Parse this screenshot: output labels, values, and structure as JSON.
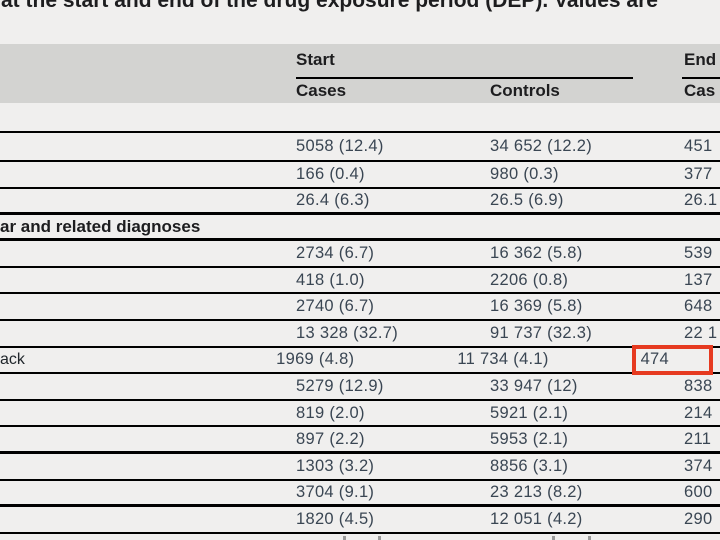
{
  "page": {
    "title_fragment": "at the start and end of the drug exposure period (DEP). Values are"
  },
  "table": {
    "column_groups": {
      "start": {
        "label": "Start",
        "col1": "Cases",
        "col2": "Controls"
      },
      "end": {
        "label": "End",
        "col1": "Cas"
      }
    },
    "rows": [
      {
        "type": "data",
        "label": "",
        "cases": "5058 (12.4)",
        "controls": "34 652 (12.2)",
        "end_cases": "451",
        "first": true
      },
      {
        "type": "data",
        "label": "",
        "cases": "166 (0.4)",
        "controls": "980 (0.3)",
        "end_cases": "377"
      },
      {
        "type": "data",
        "label": "",
        "cases": "26.4 (6.3)",
        "controls": "26.5 (6.9)",
        "end_cases": "26.1",
        "thick": true
      },
      {
        "type": "section",
        "label": "ar and related diagnoses",
        "thick": true
      },
      {
        "type": "data",
        "label": "",
        "cases": "2734 (6.7)",
        "controls": "16 362 (5.8)",
        "end_cases": "539"
      },
      {
        "type": "data",
        "label": "",
        "cases": "418 (1.0)",
        "controls": "2206 (0.8)",
        "end_cases": "137"
      },
      {
        "type": "data",
        "label": "",
        "cases": "2740 (6.7)",
        "controls": "16 369 (5.8)",
        "end_cases": "648"
      },
      {
        "type": "data",
        "label": "",
        "cases": "13 328 (32.7)",
        "controls": "91 737 (32.3)",
        "end_cases": "22 1"
      },
      {
        "type": "data",
        "label": "ack",
        "cases": "1969 (4.8)",
        "controls": "11 734 (4.1)",
        "end_cases": "474",
        "highlight_end": true
      },
      {
        "type": "data",
        "label": "",
        "cases": "5279 (12.9)",
        "controls": "33 947 (12)",
        "end_cases": "838"
      },
      {
        "type": "data",
        "label": "",
        "cases": "819 (2.0)",
        "controls": "5921 (2.1)",
        "end_cases": "214"
      },
      {
        "type": "data",
        "label": "",
        "cases": "897 (2.2)",
        "controls": "5953 (2.1)",
        "end_cases": "211",
        "thick": true
      },
      {
        "type": "data",
        "label": "",
        "cases": "1303 (3.2)",
        "controls": "8856 (3.1)",
        "end_cases": "374"
      },
      {
        "type": "data",
        "label": "",
        "cases": "3704 (9.1)",
        "controls": "23 213 (8.2)",
        "end_cases": "600",
        "thick": true
      },
      {
        "type": "data",
        "label": "",
        "cases": "1820 (4.5)",
        "controls": "12 051 (4.2)",
        "end_cases": "290"
      }
    ]
  },
  "colors": {
    "page_bg": "#f0efee",
    "header_bg": "#d3d3d1",
    "rule": "#000000",
    "value_text": "#3a4653",
    "label_text": "#1d1d1f",
    "highlight_box": "#e63a20"
  }
}
